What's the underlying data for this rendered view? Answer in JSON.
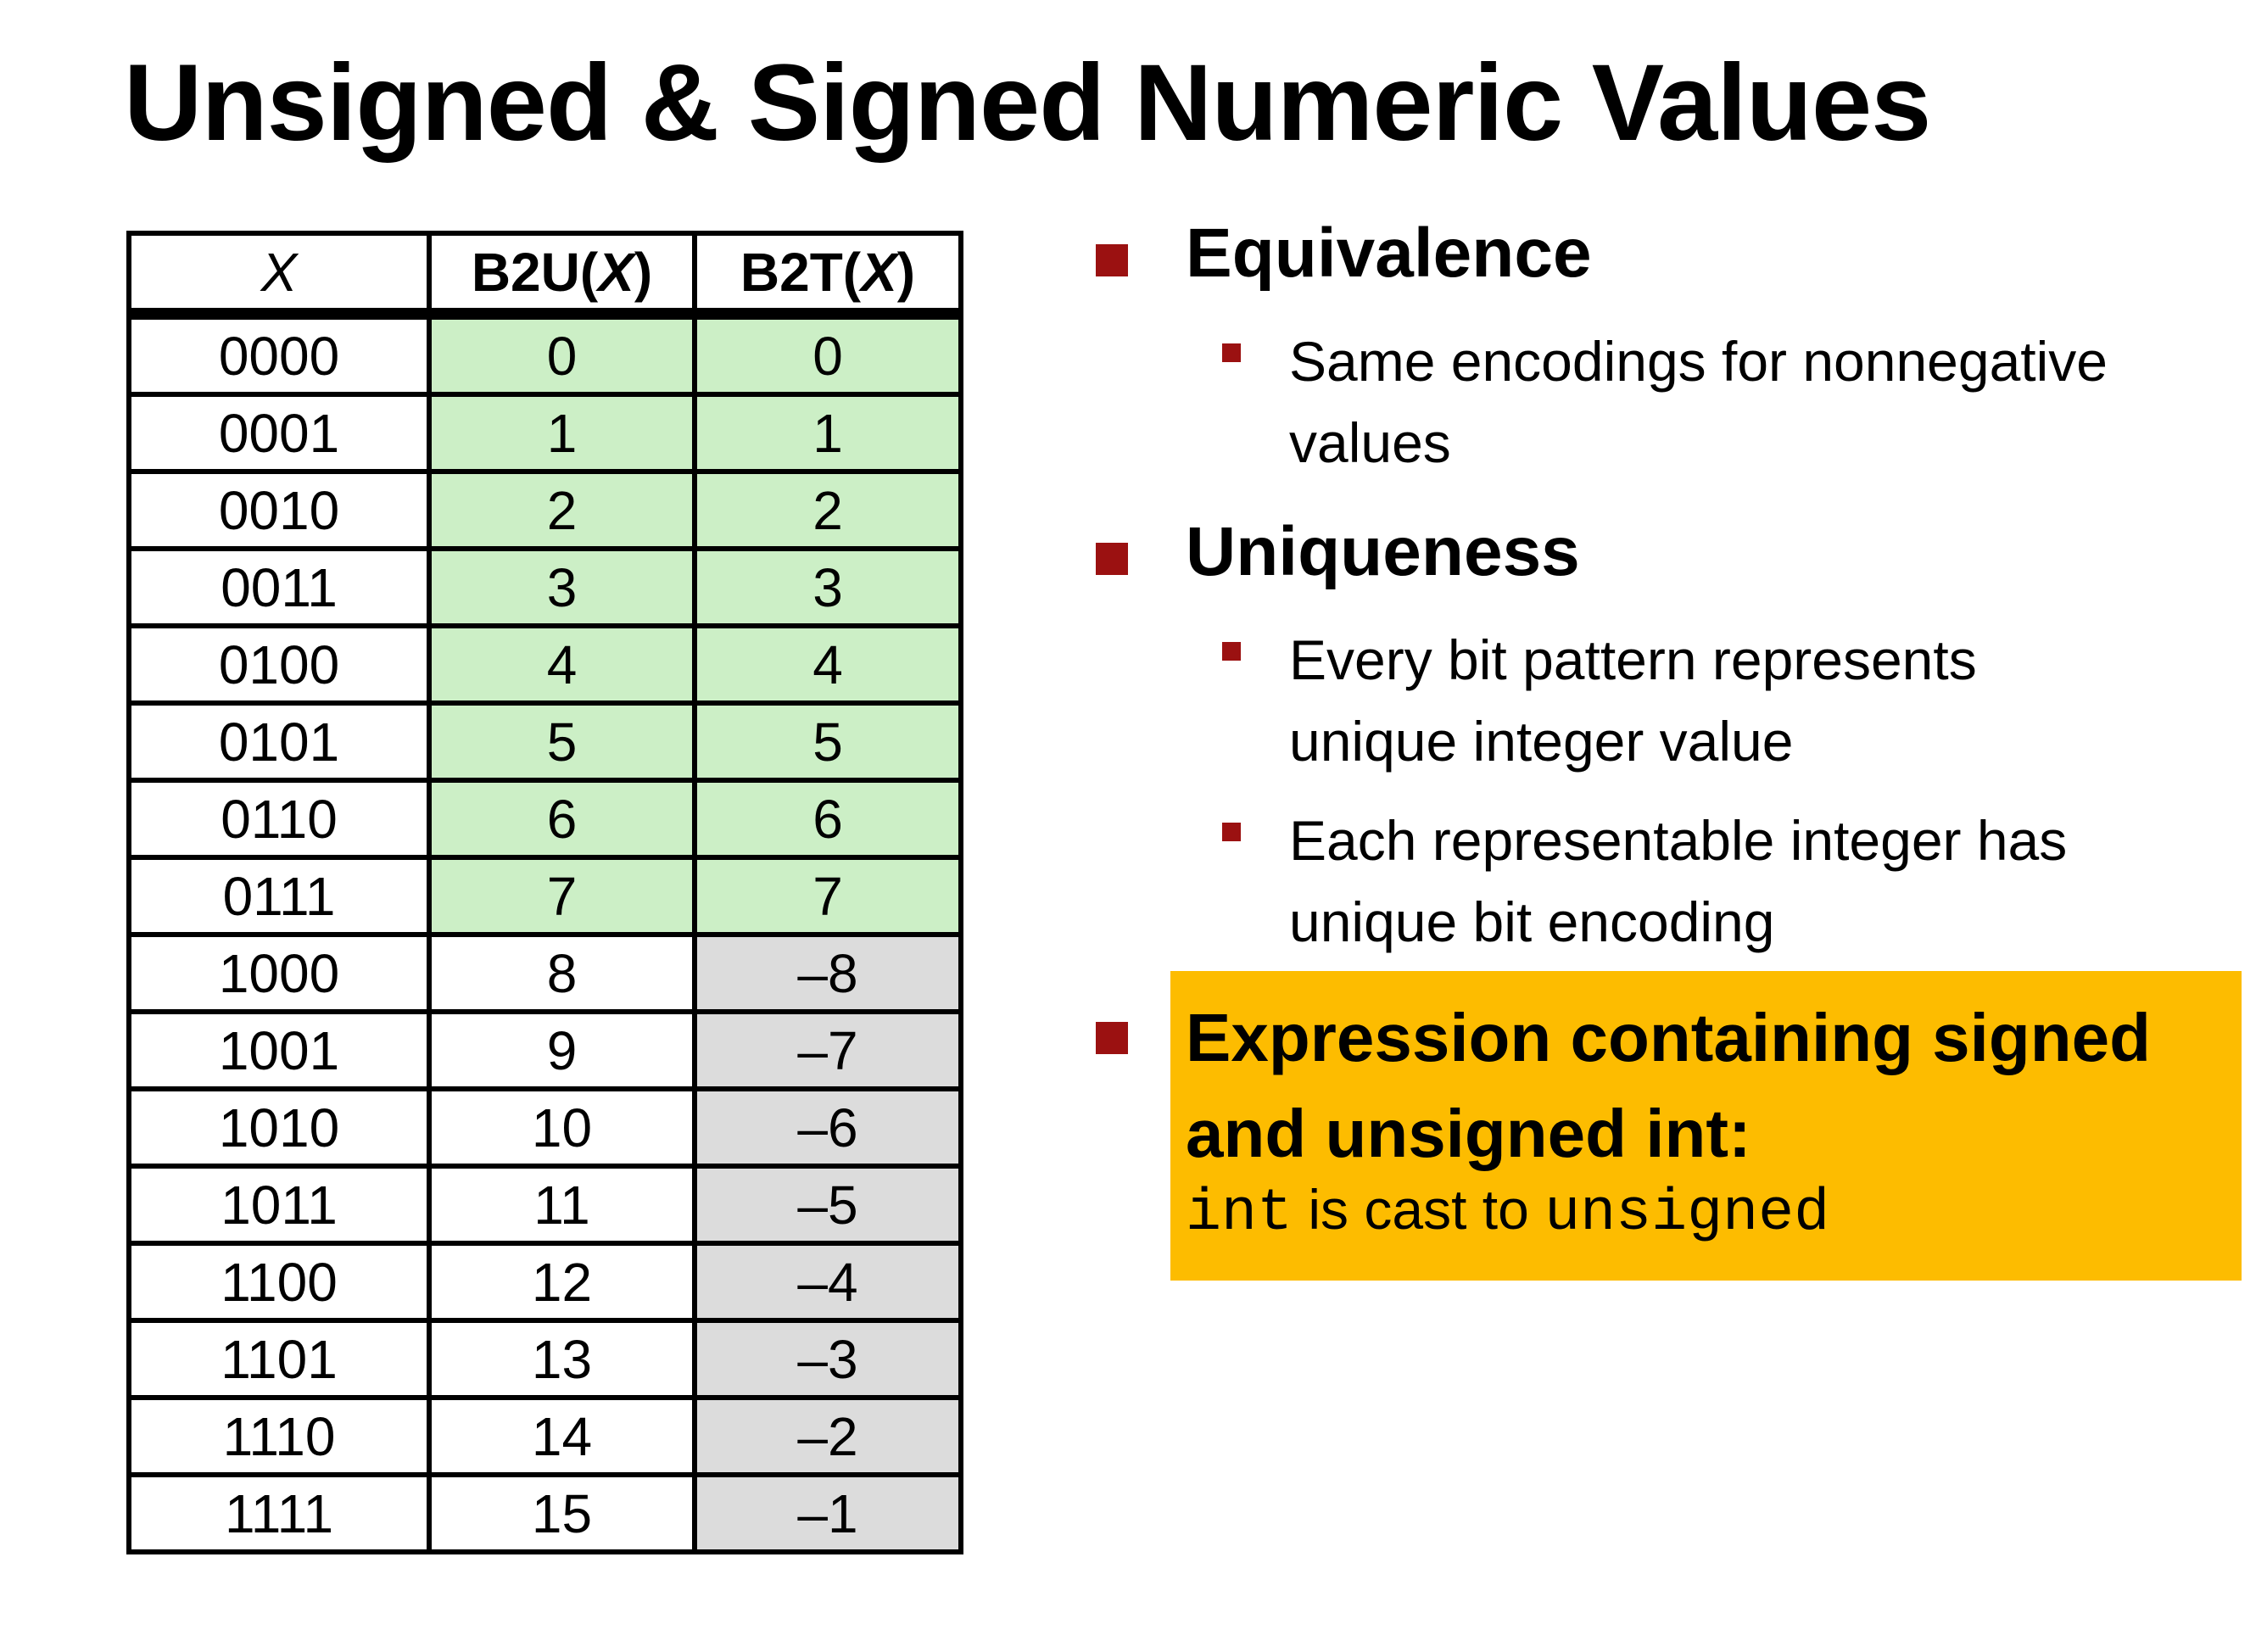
{
  "title": "Unsigned & Signed Numeric Values",
  "table": {
    "headers": {
      "x": "X",
      "b2u_prefix": "B2U(",
      "b2u_var": "X",
      "b2u_suffix": ")",
      "b2t_prefix": "B2T(",
      "b2t_var": "X",
      "b2t_suffix": ")"
    },
    "rows": [
      {
        "x": "0000",
        "b2u": "0",
        "b2t": "0"
      },
      {
        "x": "0001",
        "b2u": "1",
        "b2t": "1"
      },
      {
        "x": "0010",
        "b2u": "2",
        "b2t": "2"
      },
      {
        "x": "0011",
        "b2u": "3",
        "b2t": "3"
      },
      {
        "x": "0100",
        "b2u": "4",
        "b2t": "4"
      },
      {
        "x": "0101",
        "b2u": "5",
        "b2t": "5"
      },
      {
        "x": "0110",
        "b2u": "6",
        "b2t": "6"
      },
      {
        "x": "0111",
        "b2u": "7",
        "b2t": "7"
      },
      {
        "x": "1000",
        "b2u": "8",
        "b2t": "–8"
      },
      {
        "x": "1001",
        "b2u": "9",
        "b2t": "–7"
      },
      {
        "x": "1010",
        "b2u": "10",
        "b2t": "–6"
      },
      {
        "x": "1011",
        "b2u": "11",
        "b2t": "–5"
      },
      {
        "x": "1100",
        "b2u": "12",
        "b2t": "–4"
      },
      {
        "x": "1101",
        "b2u": "13",
        "b2t": "–3"
      },
      {
        "x": "1110",
        "b2u": "14",
        "b2t": "–2"
      },
      {
        "x": "1111",
        "b2u": "15",
        "b2t": "–1"
      }
    ],
    "colors": {
      "nonneg": "#ccefc6",
      "neg": "#dcdcdc"
    }
  },
  "bullets": {
    "equivalence": {
      "heading": "Equivalence",
      "items": [
        {
          "line1": "Same encodings for nonnegative",
          "line2": "values"
        }
      ]
    },
    "uniqueness": {
      "heading": "Uniqueness",
      "items": [
        {
          "line1": "Every bit pattern represents",
          "line2": "unique integer value"
        },
        {
          "line1": "Each representable integer has",
          "line2": "unique bit encoding"
        }
      ]
    },
    "expression": {
      "line1": "Expression containing signed",
      "line2": "and unsigned int:",
      "code1": "int",
      "mid": " is cast to ",
      "code2": "unsigned",
      "highlight": "#fdbc00"
    },
    "bullet_color": "#9b1111"
  }
}
